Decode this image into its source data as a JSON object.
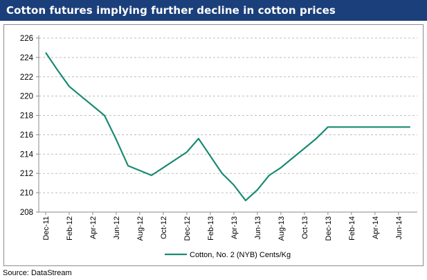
{
  "title": "Cotton futures implying further decline in cotton prices",
  "source": "Source: DataStream",
  "colors": {
    "title_bg": "#1b3f7a",
    "series": "#1a8a72",
    "grid": "#bdbdbd",
    "axis": "#888888"
  },
  "chart_data": {
    "type": "line",
    "title": "Cotton futures implying further decline in cotton prices",
    "xlabel": "",
    "ylabel": "",
    "ylim": [
      208,
      226
    ],
    "ytick_step": 2,
    "grid": "horizontal dashed",
    "legend_position": "bottom",
    "categories": [
      "Dec-11",
      "Feb-12",
      "Apr-12",
      "Jun-12",
      "Aug-12",
      "Oct-12",
      "Dec-12",
      "Feb-13",
      "Apr-13",
      "Jun-13",
      "Aug-13",
      "Oct-13",
      "Dec-13",
      "Feb-14",
      "Apr-14",
      "Jun-14"
    ],
    "series": [
      {
        "name": "Cotton, No. 2 (NYB) Cents/Kg",
        "x": [
          0,
          0.5,
          1,
          1.5,
          2,
          2.5,
          3,
          3.5,
          4,
          4.5,
          5,
          5.5,
          6,
          6.5,
          7,
          7.5,
          8,
          8.5,
          9,
          9.5,
          10,
          10.5,
          11,
          11.5,
          12,
          12.5,
          13,
          13.5,
          14,
          14.5,
          15,
          15.5
        ],
        "values": [
          224.5,
          222.7,
          221.0,
          220.0,
          219.0,
          218.0,
          215.5,
          212.8,
          212.3,
          211.8,
          212.6,
          213.4,
          214.2,
          215.6,
          213.8,
          212.0,
          210.8,
          209.2,
          210.3,
          211.8,
          212.6,
          213.6,
          214.6,
          215.6,
          216.8,
          216.8,
          216.8,
          216.8,
          216.8,
          216.8,
          216.8,
          216.8
        ]
      }
    ]
  }
}
